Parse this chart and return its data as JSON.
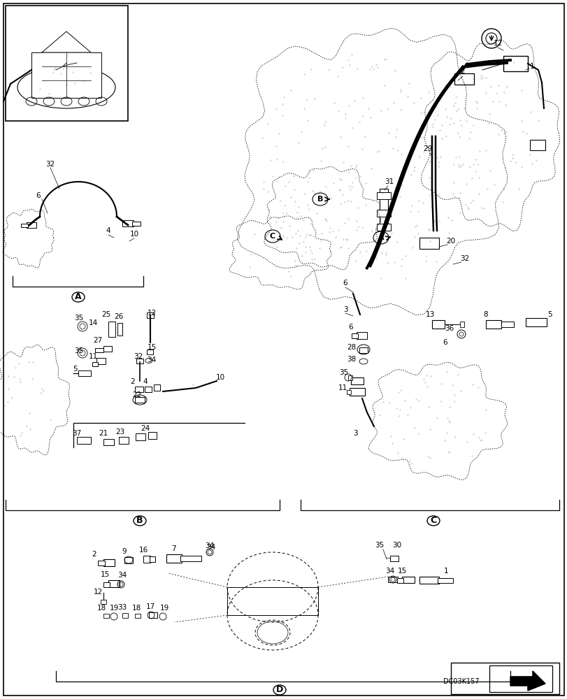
{
  "bg_color": "#ffffff",
  "fig_width": 8.12,
  "fig_height": 10.0,
  "dpi": 100,
  "watermark_text": "DC03K157",
  "sections": {
    "A": "A",
    "B": "B",
    "C": "C",
    "D": "D"
  }
}
